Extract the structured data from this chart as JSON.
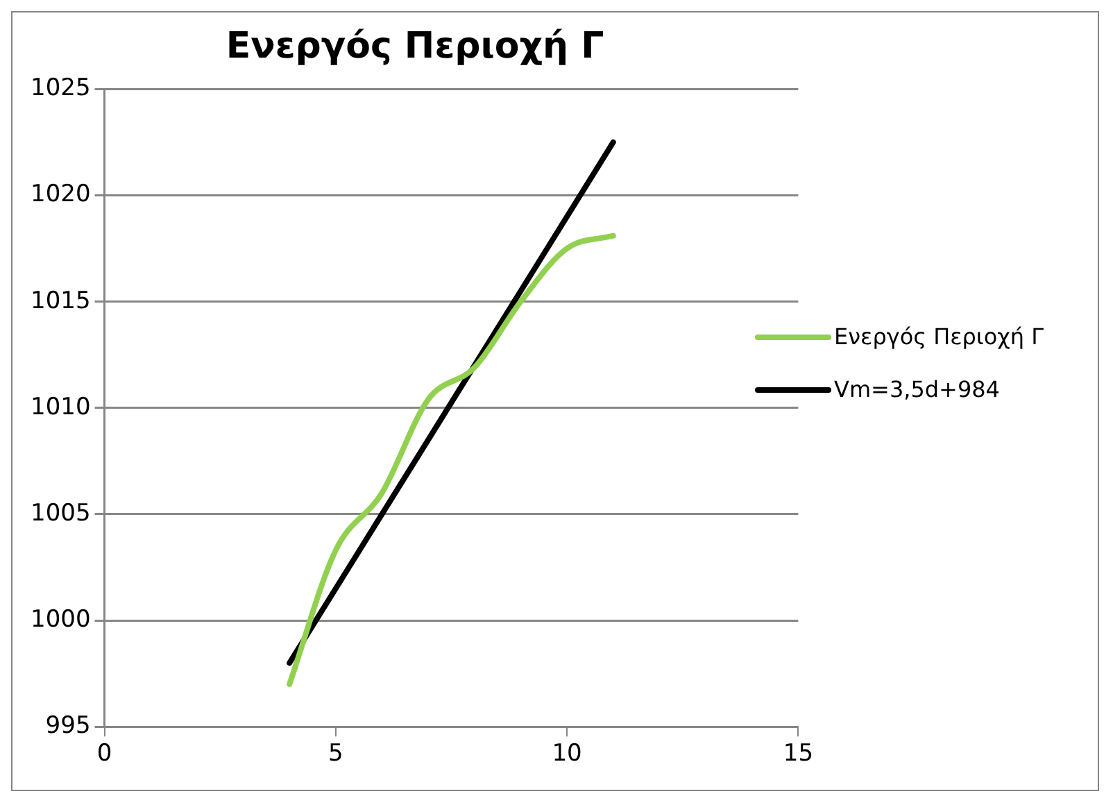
{
  "chart_data": {
    "type": "line",
    "title": "Ενεργός Περιοχή Γ",
    "x": [
      4,
      5,
      6,
      7,
      8,
      9,
      10,
      11
    ],
    "series": [
      {
        "name": "Ενεργός Περιοχή Γ",
        "color": "#92d050",
        "values": [
          997,
          1003.3,
          1006,
          1010.4,
          1011.9,
          1015,
          1017.5,
          1018.1
        ]
      },
      {
        "name": "Vm=3,5d+984",
        "color": "#000000",
        "x": [
          4,
          11
        ],
        "values": [
          998,
          1022.5
        ]
      }
    ],
    "xlim": [
      0,
      15
    ],
    "xticks": [
      0,
      5,
      10,
      15
    ],
    "ylim": [
      995,
      1025
    ],
    "yticks": [
      995,
      1000,
      1005,
      1010,
      1015,
      1020,
      1025
    ],
    "grid": "y",
    "legend": "right",
    "marker": "none",
    "line_style": "solid"
  }
}
